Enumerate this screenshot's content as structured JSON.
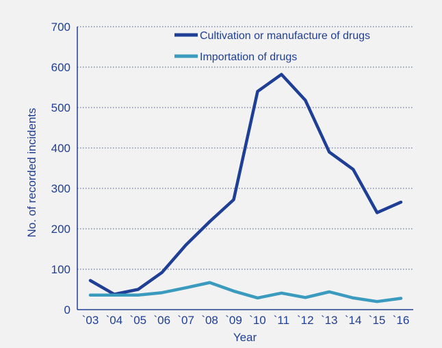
{
  "chart_data": {
    "type": "line",
    "categories": [
      "`03",
      "`04",
      "`05",
      "`06",
      "`07",
      "`08",
      "`09",
      "`10",
      "`11",
      "`12",
      "`13",
      "`14",
      "`15",
      "`16"
    ],
    "series": [
      {
        "name": "Cultivation or manufacture of drugs",
        "color": "#1f3e95",
        "values": [
          72,
          38,
          50,
          92,
          160,
          218,
          272,
          540,
          582,
          518,
          390,
          347,
          240,
          266
        ]
      },
      {
        "name": "Importation of drugs",
        "color": "#3a9bbf",
        "values": [
          36,
          36,
          36,
          42,
          54,
          67,
          46,
          29,
          41,
          30,
          44,
          29,
          20,
          28
        ]
      }
    ],
    "title": "",
    "xlabel": "Year",
    "ylabel": "No. of recorded incidents",
    "ylim": [
      0,
      700
    ],
    "yticks": [
      0,
      100,
      200,
      300,
      400,
      500,
      600,
      700
    ],
    "grid": true,
    "legend_position": "top-right"
  }
}
